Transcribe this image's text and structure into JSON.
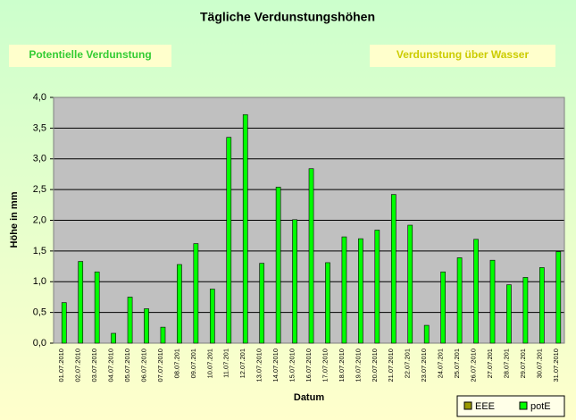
{
  "chart_data": {
    "type": "bar",
    "title": "Tägliche Verdunstungshöhen",
    "buttons": [
      "Potentielle Verdunstung",
      "Verdunstung über Wasser"
    ],
    "ylabel": "Höhe in mm",
    "xlabel": "Datum",
    "categories": [
      "01.07.2010",
      "02.07.2010",
      "03.07.2010",
      "04.07.2010",
      "05.07.2010",
      "06.07.2010",
      "07.07.2010",
      "08.07.201",
      "09.07.201",
      "10.07.201",
      "11.07.201",
      "12.07.201",
      "13.07.2010",
      "14.07.2010",
      "15.07.2010",
      "16.07.2010",
      "17.07.2010",
      "18.07.2010",
      "19.07.2010",
      "20.07.2010",
      "21.07.2010",
      "22.07.201",
      "23.07.2010",
      "24.07.201",
      "25.07.201",
      "26.07.2010",
      "27.07.201",
      "28.07.201",
      "29.07.201",
      "30.07.201",
      "31.07.2010"
    ],
    "series": [
      {
        "name": "EEE",
        "color": "#999900",
        "values": [
          null,
          null,
          null,
          null,
          null,
          null,
          null,
          null,
          null,
          null,
          null,
          null,
          null,
          null,
          null,
          null,
          null,
          null,
          null,
          null,
          null,
          null,
          null,
          null,
          null,
          null,
          null,
          null,
          null,
          null,
          null
        ]
      },
      {
        "name": "potE",
        "color": "#00ff00",
        "values": [
          0.66,
          1.33,
          1.16,
          0.16,
          0.75,
          0.56,
          0.26,
          1.28,
          1.62,
          0.88,
          3.35,
          3.72,
          1.3,
          2.54,
          2.01,
          2.84,
          1.31,
          1.73,
          1.7,
          1.84,
          2.42,
          1.92,
          0.29,
          1.16,
          1.39,
          1.69,
          1.35,
          0.95,
          1.07,
          1.23,
          1.49
        ]
      }
    ],
    "ylim": [
      0,
      4
    ],
    "yticks": [
      {
        "value": 0,
        "label": "0,0"
      },
      {
        "value": 0.5,
        "label": "0,5"
      },
      {
        "value": 1,
        "label": "1,0"
      },
      {
        "value": 1.5,
        "label": "1,5"
      },
      {
        "value": 2,
        "label": "2,0"
      },
      {
        "value": 2.5,
        "label": "2,5"
      },
      {
        "value": 3,
        "label": "3,0"
      },
      {
        "value": 3.5,
        "label": "3,5"
      },
      {
        "value": 4,
        "label": "4,0"
      }
    ],
    "grid": true,
    "legend": "bottom-right"
  }
}
